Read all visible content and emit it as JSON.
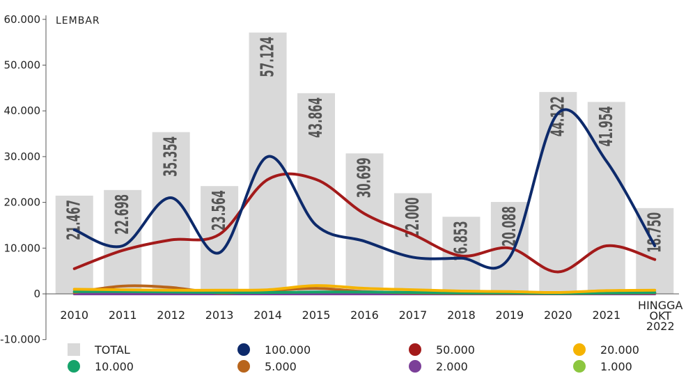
{
  "chart_data": {
    "type": "bar",
    "unit_label": "LEMBAR",
    "categories": [
      "2010",
      "2011",
      "2012",
      "2013",
      "2014",
      "2015",
      "2016",
      "2017",
      "2018",
      "2019",
      "2020",
      "2021",
      "HINGGA OKT 2022"
    ],
    "ylim": [
      -10000,
      60000
    ],
    "yticks": [
      "-10.000",
      "0",
      "10.000",
      "20.000",
      "30.000",
      "40.000",
      "50.000",
      "60.000"
    ],
    "series": [
      {
        "name": "TOTAL",
        "kind": "bar",
        "color": "#d9d9d9",
        "values": [
          21467,
          22698,
          35354,
          23564,
          57124,
          43864,
          30699,
          22000,
          16853,
          20088,
          44122,
          41954,
          18750
        ],
        "labels": [
          "21.467",
          "22.698",
          "35.354",
          "23.564",
          "57.124",
          "43.864",
          "30.699",
          "22.000",
          "16.853",
          "20.088",
          "44.122",
          "41.954",
          "18.750"
        ]
      },
      {
        "name": "100.000",
        "kind": "line",
        "color": "#0d2a6b",
        "values": [
          14000,
          10500,
          21000,
          9000,
          30000,
          15000,
          11500,
          8000,
          7800,
          8000,
          39500,
          29000,
          10500
        ]
      },
      {
        "name": "50.000",
        "kind": "line",
        "color": "#a31a1a",
        "values": [
          5500,
          9500,
          11800,
          13000,
          25000,
          25000,
          17500,
          13000,
          8300,
          10000,
          4800,
          10500,
          7500
        ]
      },
      {
        "name": "20.000",
        "kind": "line",
        "color": "#f5b301",
        "values": [
          1000,
          900,
          800,
          800,
          900,
          1800,
          1200,
          900,
          600,
          500,
          300,
          700,
          800
        ]
      },
      {
        "name": "10.000",
        "kind": "line",
        "color": "#16a36a",
        "values": [
          500,
          500,
          400,
          300,
          300,
          400,
          400,
          300,
          200,
          200,
          100,
          200,
          300
        ]
      },
      {
        "name": "5.000",
        "kind": "line",
        "color": "#b8651c",
        "values": [
          300,
          1700,
          1400,
          200,
          700,
          1200,
          500,
          200,
          100,
          100,
          50,
          150,
          200
        ]
      },
      {
        "name": "2.000",
        "kind": "line",
        "color": "#7b3f98",
        "values": [
          0,
          0,
          0,
          0,
          0,
          0,
          0,
          0,
          0,
          0,
          0,
          0,
          0
        ]
      },
      {
        "name": "1.000",
        "kind": "line",
        "color": "#8cc63f",
        "values": [
          0,
          0,
          0,
          0,
          0,
          0,
          0,
          0,
          0,
          0,
          0,
          0,
          0
        ]
      }
    ],
    "legend": [
      "TOTAL",
      "100.000",
      "50.000",
      "20.000",
      "10.000",
      "5.000",
      "2.000",
      "1.000"
    ]
  }
}
